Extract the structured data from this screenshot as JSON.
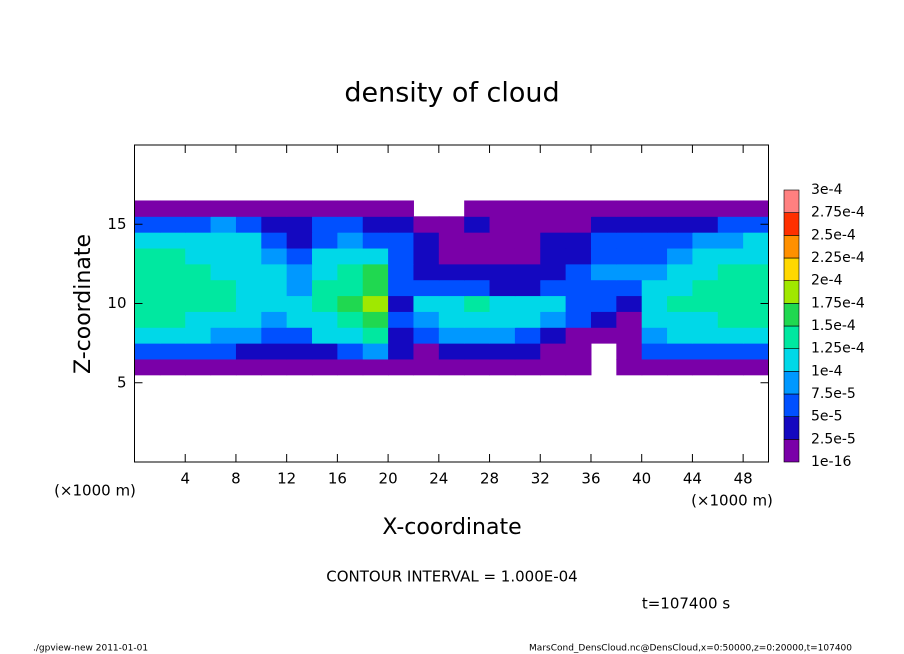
{
  "chart_data": {
    "type": "heatmap",
    "title": "density of cloud",
    "x_label": "X-coordinate",
    "y_label": "Z-coordinate",
    "x_unit": "(×1000 m)",
    "y_unit": "(×1000 m)",
    "contour_note": "CONTOUR INTERVAL = 1.000E-04",
    "time_label": "t=107400 s",
    "footer_left": "./gpview-new   2011-01-01",
    "footer_right": "MarsCond_DensCloud.nc@DensCloud,x=0:50000,z=0:20000,t=107400",
    "xlim": [
      0,
      50
    ],
    "ylim": [
      0,
      20
    ],
    "xticks": [
      4,
      8,
      12,
      16,
      20,
      24,
      28,
      32,
      36,
      40,
      44,
      48
    ],
    "yticks": [
      5,
      10,
      15
    ],
    "x": [
      1,
      3,
      5,
      7,
      9,
      11,
      13,
      15,
      17,
      19,
      21,
      23,
      25,
      27,
      29,
      31,
      33,
      35,
      37,
      39,
      41,
      43,
      45,
      47,
      49
    ],
    "z": [
      6,
      7,
      8,
      9,
      10,
      11,
      12,
      13,
      14,
      15,
      16
    ],
    "values": [
      [
        1e-05,
        1e-05,
        1e-05,
        1e-05,
        1e-05,
        1e-05,
        1e-05,
        1e-05,
        1e-05,
        2e-05,
        1e-05,
        1e-05,
        1e-05,
        1e-05,
        1e-05,
        1e-05,
        1e-05,
        1e-05,
        null,
        1e-05,
        1e-05,
        1e-05,
        1e-05,
        1e-05,
        1e-05
      ],
      [
        6e-05,
        6e-05,
        5e-05,
        5e-05,
        4e-05,
        4e-05,
        3e-05,
        4e-05,
        6e-05,
        8e-05,
        3e-05,
        2e-05,
        3e-05,
        4e-05,
        4e-05,
        3e-05,
        2e-05,
        1e-05,
        null,
        1e-05,
        5e-05,
        6e-05,
        6e-05,
        6e-05,
        6e-05
      ],
      [
        0.00011,
        0.00011,
        0.0001,
        9e-05,
        8e-05,
        6e-05,
        6e-05,
        0.0001,
        0.00012,
        0.00013,
        4e-05,
        5e-05,
        9e-05,
        9e-05,
        8e-05,
        7e-05,
        4e-05,
        2e-05,
        1e-05,
        1e-05,
        9e-05,
        0.0001,
        0.0001,
        0.0001,
        0.00011
      ],
      [
        0.00013,
        0.00013,
        0.00012,
        0.00012,
        0.00011,
        9e-05,
        0.0001,
        0.00012,
        0.00014,
        0.00016,
        5e-05,
        8e-05,
        0.00012,
        0.00012,
        0.00011,
        0.0001,
        9e-05,
        7e-05,
        3e-05,
        1e-05,
        0.00011,
        0.00012,
        0.00012,
        0.00013,
        0.00013
      ],
      [
        0.00014,
        0.00014,
        0.00013,
        0.00013,
        0.00012,
        0.0001,
        0.0001,
        0.00013,
        0.00015,
        0.00018,
        4e-05,
        0.0001,
        0.00012,
        0.00013,
        0.00012,
        0.00011,
        0.0001,
        6e-05,
        5e-05,
        3e-05,
        0.00012,
        0.00013,
        0.00013,
        0.00013,
        0.00014
      ],
      [
        0.00014,
        0.00014,
        0.00013,
        0.00013,
        0.00012,
        0.0001,
        9e-05,
        0.00013,
        0.00014,
        0.00017,
        5e-05,
        6e-05,
        5e-05,
        5e-05,
        4e-05,
        4e-05,
        5e-05,
        6e-05,
        6e-05,
        5e-05,
        0.0001,
        0.00012,
        0.00013,
        0.00013,
        0.00014
      ],
      [
        0.00014,
        0.00014,
        0.00013,
        0.00012,
        0.00011,
        0.0001,
        8e-05,
        0.00012,
        0.00014,
        0.00015,
        6e-05,
        4e-05,
        3e-05,
        3e-05,
        3e-05,
        3e-05,
        4e-05,
        6e-05,
        8e-05,
        9e-05,
        9e-05,
        0.0001,
        0.00012,
        0.00013,
        0.00013
      ],
      [
        0.00013,
        0.00013,
        0.00012,
        0.00011,
        0.0001,
        8e-05,
        7e-05,
        0.0001,
        0.00012,
        0.00011,
        6e-05,
        3e-05,
        2e-05,
        2e-05,
        2e-05,
        2e-05,
        3e-05,
        4e-05,
        6e-05,
        7e-05,
        7e-05,
        8e-05,
        0.0001,
        0.00011,
        0.00012
      ],
      [
        0.00011,
        0.00011,
        0.00011,
        0.00012,
        0.0001,
        6e-05,
        4e-05,
        7e-05,
        8e-05,
        7e-05,
        5e-05,
        3e-05,
        2e-05,
        2e-05,
        2e-05,
        2e-05,
        3e-05,
        4e-05,
        6e-05,
        7e-05,
        6e-05,
        7e-05,
        8e-05,
        9e-05,
        0.0001
      ],
      [
        5e-05,
        5e-05,
        6e-05,
        8e-05,
        6e-05,
        4e-05,
        3e-05,
        5e-05,
        5e-05,
        4e-05,
        3e-05,
        1e-05,
        1e-05,
        3e-05,
        2e-05,
        2e-05,
        2e-05,
        2e-05,
        3e-05,
        3e-05,
        3e-05,
        4e-05,
        4e-05,
        5e-05,
        5e-05
      ],
      [
        2e-05,
        2e-05,
        2e-05,
        2e-05,
        2e-05,
        1e-05,
        1e-05,
        1e-05,
        1e-05,
        1e-05,
        1e-05,
        null,
        null,
        1e-05,
        1e-05,
        1e-05,
        1e-05,
        1e-05,
        1e-05,
        1e-05,
        1e-05,
        1e-05,
        2e-05,
        2e-05,
        2e-05
      ]
    ],
    "levels": [
      {
        "value": 1e-16,
        "label": "1e-16"
      },
      {
        "value": 2.5e-05,
        "label": "2.5e-5"
      },
      {
        "value": 5e-05,
        "label": "5e-5"
      },
      {
        "value": 7.5e-05,
        "label": "7.5e-5"
      },
      {
        "value": 0.0001,
        "label": "1e-4"
      },
      {
        "value": 0.000125,
        "label": "1.25e-4"
      },
      {
        "value": 0.00015,
        "label": "1.5e-4"
      },
      {
        "value": 0.000175,
        "label": "1.75e-4"
      },
      {
        "value": 0.0002,
        "label": "2e-4"
      },
      {
        "value": 0.000225,
        "label": "2.25e-4"
      },
      {
        "value": 0.00025,
        "label": "2.5e-4"
      },
      {
        "value": 0.000275,
        "label": "2.75e-4"
      },
      {
        "value": 0.0003,
        "label": "3e-4"
      }
    ],
    "colors": [
      "#7a00a8",
      "#1408c0",
      "#0050ff",
      "#0098ff",
      "#00d8e8",
      "#00e8a0",
      "#20d850",
      "#a0e800",
      "#ffd800",
      "#ff9000",
      "#ff3000",
      "#ff8080"
    ]
  }
}
